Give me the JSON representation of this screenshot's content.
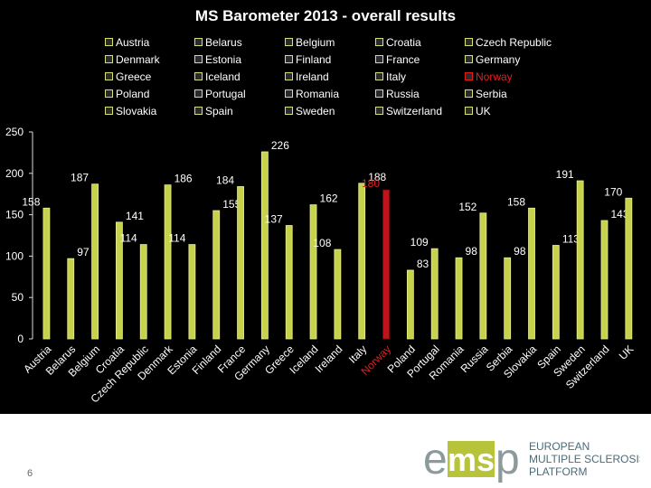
{
  "chart_data": {
    "type": "bar",
    "title": "MS Barometer 2013 - overall results",
    "categories": [
      "Austria",
      "Belarus",
      "Belgium",
      "Croatia",
      "Czech Republic",
      "Denmark",
      "Estonia",
      "Finland",
      "France",
      "Germany",
      "Greece",
      "Iceland",
      "Ireland",
      "Italy",
      "Norway",
      "Poland",
      "Portugal",
      "Romania",
      "Russia",
      "Serbia",
      "Slovakia",
      "Spain",
      "Sweden",
      "Switzerland",
      "UK"
    ],
    "values": [
      158,
      97,
      187,
      141,
      114,
      186,
      114,
      155,
      184,
      226,
      137,
      162,
      108,
      188,
      180,
      83,
      109,
      98,
      152,
      98,
      158,
      113,
      191,
      143,
      170
    ],
    "highlight": "Norway",
    "ylim": [
      0,
      250
    ],
    "yticks": [
      0,
      50,
      100,
      150,
      200,
      250
    ],
    "grid": false,
    "legend_position": "top",
    "colors": {
      "bar": "#c6d24a",
      "bar_edge": "#e8ee9a",
      "highlight": "#c0141c",
      "label": "#ffffff",
      "highlight_label": "#e32020",
      "axis": "#dcdcdc",
      "background": "#000000"
    }
  },
  "footer": {
    "page_number": "6",
    "logo": {
      "mark": "emsp",
      "line1": "EUROPEAN",
      "line2": "MULTIPLE SCLEROSIS",
      "line3": "PLATFORM"
    }
  }
}
